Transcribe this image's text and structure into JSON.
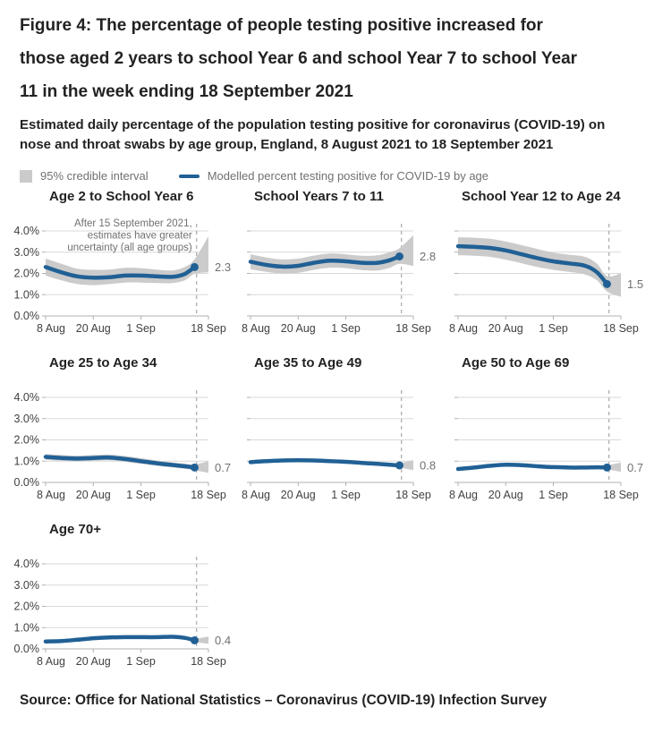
{
  "header": {
    "title": "Figure 4: The percentage of people testing positive increased for those aged 2 years to school Year 6 and school Year 7 to school Year 11 in the week ending 18 September 2021",
    "subtitle": "Estimated daily percentage of the population testing positive for coronavirus (COVID-19) on nose and throat swabs by age group, England, 8 August 2021 to 18 September 2021"
  },
  "legend": {
    "band_label": "95% credible interval",
    "line_label": "Modelled percent testing positive for COVID-19 by age"
  },
  "source": "Source: Office for National Statistics – Coronavirus (COVID-19) Infection Survey",
  "colors": {
    "line": "#206095",
    "band": "#cbcbcb",
    "grid": "#d9d9d9",
    "axis": "#b0b0b0",
    "dashed": "#a8a8a8",
    "text_dark": "#222222",
    "text_axis": "#414042",
    "text_muted": "#707070"
  },
  "chart_data": {
    "type": "line",
    "x_unit": "days since 8 Aug 2021",
    "x_domain": [
      0,
      41
    ],
    "x_ticks": [
      {
        "day": 0,
        "label": "8 Aug"
      },
      {
        "day": 12,
        "label": "20 Aug"
      },
      {
        "day": 24,
        "label": "1 Sep"
      },
      {
        "day": 41,
        "label": "18 Sep"
      }
    ],
    "ylim": [
      0,
      4
    ],
    "y_ticks": [
      {
        "value": 4,
        "label": "4.0%"
      },
      {
        "value": 3,
        "label": "3.0%"
      },
      {
        "value": 2,
        "label": "2.0%"
      },
      {
        "value": 1,
        "label": "1.0%"
      },
      {
        "value": 0,
        "label": "0.0%"
      }
    ],
    "uncertainty_day": 38,
    "annotation": {
      "panel_index": 0,
      "lines": [
        "After 15 September 2021,",
        "estimates have greater",
        "uncertainty (all age groups)"
      ]
    },
    "series_days": [
      0,
      4,
      8,
      12,
      16,
      20,
      24,
      28,
      32,
      35,
      37.5
    ],
    "band_days": [
      0,
      4,
      8,
      12,
      16,
      20,
      24,
      28,
      32,
      35,
      37.5,
      41
    ],
    "panels": [
      {
        "title": "Age 2 to School Year 6",
        "end_label": "2.3",
        "show_y_labels": true,
        "values": [
          2.3,
          2.05,
          1.86,
          1.8,
          1.82,
          1.9,
          1.9,
          1.86,
          1.84,
          1.97,
          2.3
        ],
        "band_lower": [
          1.9,
          1.67,
          1.5,
          1.45,
          1.5,
          1.57,
          1.57,
          1.55,
          1.55,
          1.67,
          1.98,
          2.05
        ],
        "band_upper": [
          2.7,
          2.45,
          2.22,
          2.17,
          2.18,
          2.26,
          2.25,
          2.18,
          2.14,
          2.3,
          2.66,
          3.75
        ]
      },
      {
        "title": "School Years 7 to 11",
        "end_label": "2.8",
        "show_y_labels": false,
        "values": [
          2.55,
          2.4,
          2.32,
          2.36,
          2.5,
          2.6,
          2.57,
          2.5,
          2.5,
          2.62,
          2.8
        ],
        "band_lower": [
          2.2,
          2.07,
          2.0,
          2.03,
          2.17,
          2.27,
          2.25,
          2.16,
          2.14,
          2.26,
          2.45,
          2.35
        ],
        "band_upper": [
          2.9,
          2.75,
          2.66,
          2.7,
          2.84,
          2.94,
          2.9,
          2.83,
          2.85,
          3.0,
          3.18,
          3.8
        ]
      },
      {
        "title": "School Year 12 to Age 24",
        "end_label": "1.5",
        "show_y_labels": false,
        "values": [
          3.28,
          3.25,
          3.2,
          3.08,
          2.9,
          2.72,
          2.57,
          2.47,
          2.36,
          2.05,
          1.5
        ],
        "band_lower": [
          2.85,
          2.83,
          2.78,
          2.65,
          2.48,
          2.3,
          2.17,
          2.07,
          1.95,
          1.67,
          1.15,
          0.9
        ],
        "band_upper": [
          3.7,
          3.68,
          3.63,
          3.5,
          3.33,
          3.15,
          2.98,
          2.88,
          2.78,
          2.45,
          1.87,
          2.0
        ]
      },
      {
        "title": "Age 25 to Age 34",
        "end_label": "0.7",
        "show_y_labels": true,
        "values": [
          1.2,
          1.15,
          1.12,
          1.15,
          1.17,
          1.1,
          1.0,
          0.9,
          0.82,
          0.76,
          0.7
        ],
        "band_lower": [
          1.06,
          1.02,
          0.99,
          1.02,
          1.04,
          0.97,
          0.87,
          0.78,
          0.7,
          0.64,
          0.57,
          0.45
        ],
        "band_upper": [
          1.34,
          1.29,
          1.26,
          1.29,
          1.31,
          1.24,
          1.14,
          1.03,
          0.94,
          0.89,
          0.84,
          1.0
        ]
      },
      {
        "title": "Age 35 to Age 49",
        "end_label": "0.8",
        "show_y_labels": false,
        "values": [
          0.95,
          1.0,
          1.03,
          1.04,
          1.03,
          1.0,
          0.97,
          0.92,
          0.87,
          0.83,
          0.8
        ],
        "band_lower": [
          0.87,
          0.92,
          0.95,
          0.96,
          0.95,
          0.92,
          0.89,
          0.84,
          0.79,
          0.74,
          0.69,
          0.58
        ],
        "band_upper": [
          1.03,
          1.08,
          1.11,
          1.12,
          1.11,
          1.08,
          1.05,
          1.0,
          0.95,
          0.92,
          0.91,
          1.05
        ]
      },
      {
        "title": "Age 50 to Age 69",
        "end_label": "0.7",
        "show_y_labels": false,
        "values": [
          0.63,
          0.7,
          0.78,
          0.83,
          0.81,
          0.76,
          0.72,
          0.7,
          0.7,
          0.71,
          0.7
        ],
        "band_lower": [
          0.56,
          0.63,
          0.71,
          0.76,
          0.74,
          0.69,
          0.65,
          0.63,
          0.63,
          0.64,
          0.61,
          0.5
        ],
        "band_upper": [
          0.7,
          0.77,
          0.85,
          0.9,
          0.88,
          0.83,
          0.79,
          0.77,
          0.77,
          0.79,
          0.81,
          0.93
        ]
      },
      {
        "title": "Age 70+",
        "end_label": "0.4",
        "show_y_labels": true,
        "values": [
          0.35,
          0.37,
          0.43,
          0.5,
          0.54,
          0.55,
          0.55,
          0.55,
          0.57,
          0.52,
          0.4
        ],
        "band_lower": [
          0.3,
          0.32,
          0.38,
          0.45,
          0.49,
          0.5,
          0.5,
          0.5,
          0.51,
          0.45,
          0.32,
          0.24
        ],
        "band_upper": [
          0.4,
          0.42,
          0.48,
          0.55,
          0.59,
          0.6,
          0.6,
          0.6,
          0.63,
          0.59,
          0.49,
          0.58
        ]
      }
    ]
  }
}
